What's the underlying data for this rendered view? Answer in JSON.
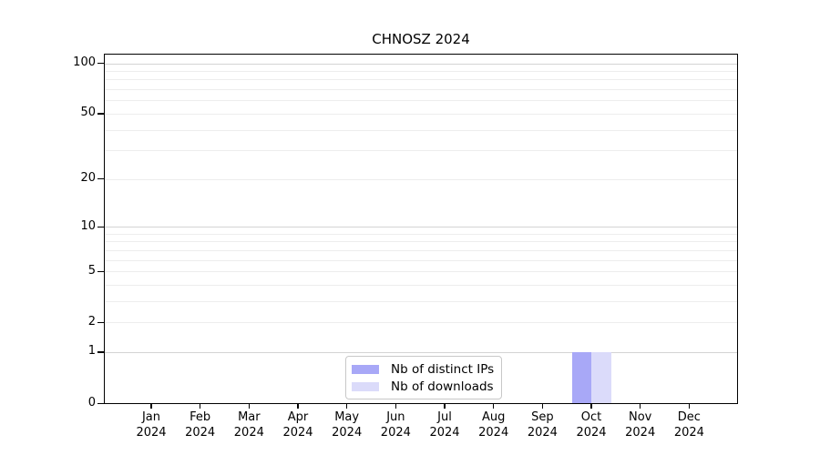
{
  "title": "CHNOSZ 2024",
  "chart_data": {
    "type": "bar",
    "title": "CHNOSZ 2024",
    "subtitle": "",
    "xlabel": "",
    "ylabel": "",
    "y_scale": "log1p",
    "ylim": [
      0,
      100
    ],
    "y_ticks": [
      0,
      1,
      2,
      5,
      10,
      20,
      50,
      100
    ],
    "gridlines_major": [
      1,
      10,
      100
    ],
    "gridlines_minor": [
      2,
      3,
      4,
      5,
      6,
      7,
      8,
      9,
      20,
      30,
      40,
      50,
      60,
      70,
      80,
      90
    ],
    "grid_major_color": "#d4d4d4",
    "grid_minor_color": "#ededed",
    "axis_color": "#000000",
    "categories": [
      "Jan",
      "Feb",
      "Mar",
      "Apr",
      "May",
      "Jun",
      "Jul",
      "Aug",
      "Sep",
      "Oct",
      "Nov",
      "Dec"
    ],
    "category_year": "2024",
    "series": [
      {
        "name": "Nb of distinct IPs",
        "color": "#a8a8f7",
        "values": [
          0,
          0,
          0,
          0,
          0,
          0,
          0,
          0,
          0,
          1,
          0,
          0
        ]
      },
      {
        "name": "Nb of downloads",
        "color": "#dbdbfa",
        "values": [
          0,
          0,
          0,
          0,
          0,
          0,
          0,
          0,
          0,
          1,
          0,
          0
        ]
      }
    ],
    "legend_position": "bottom-center-inside"
  }
}
